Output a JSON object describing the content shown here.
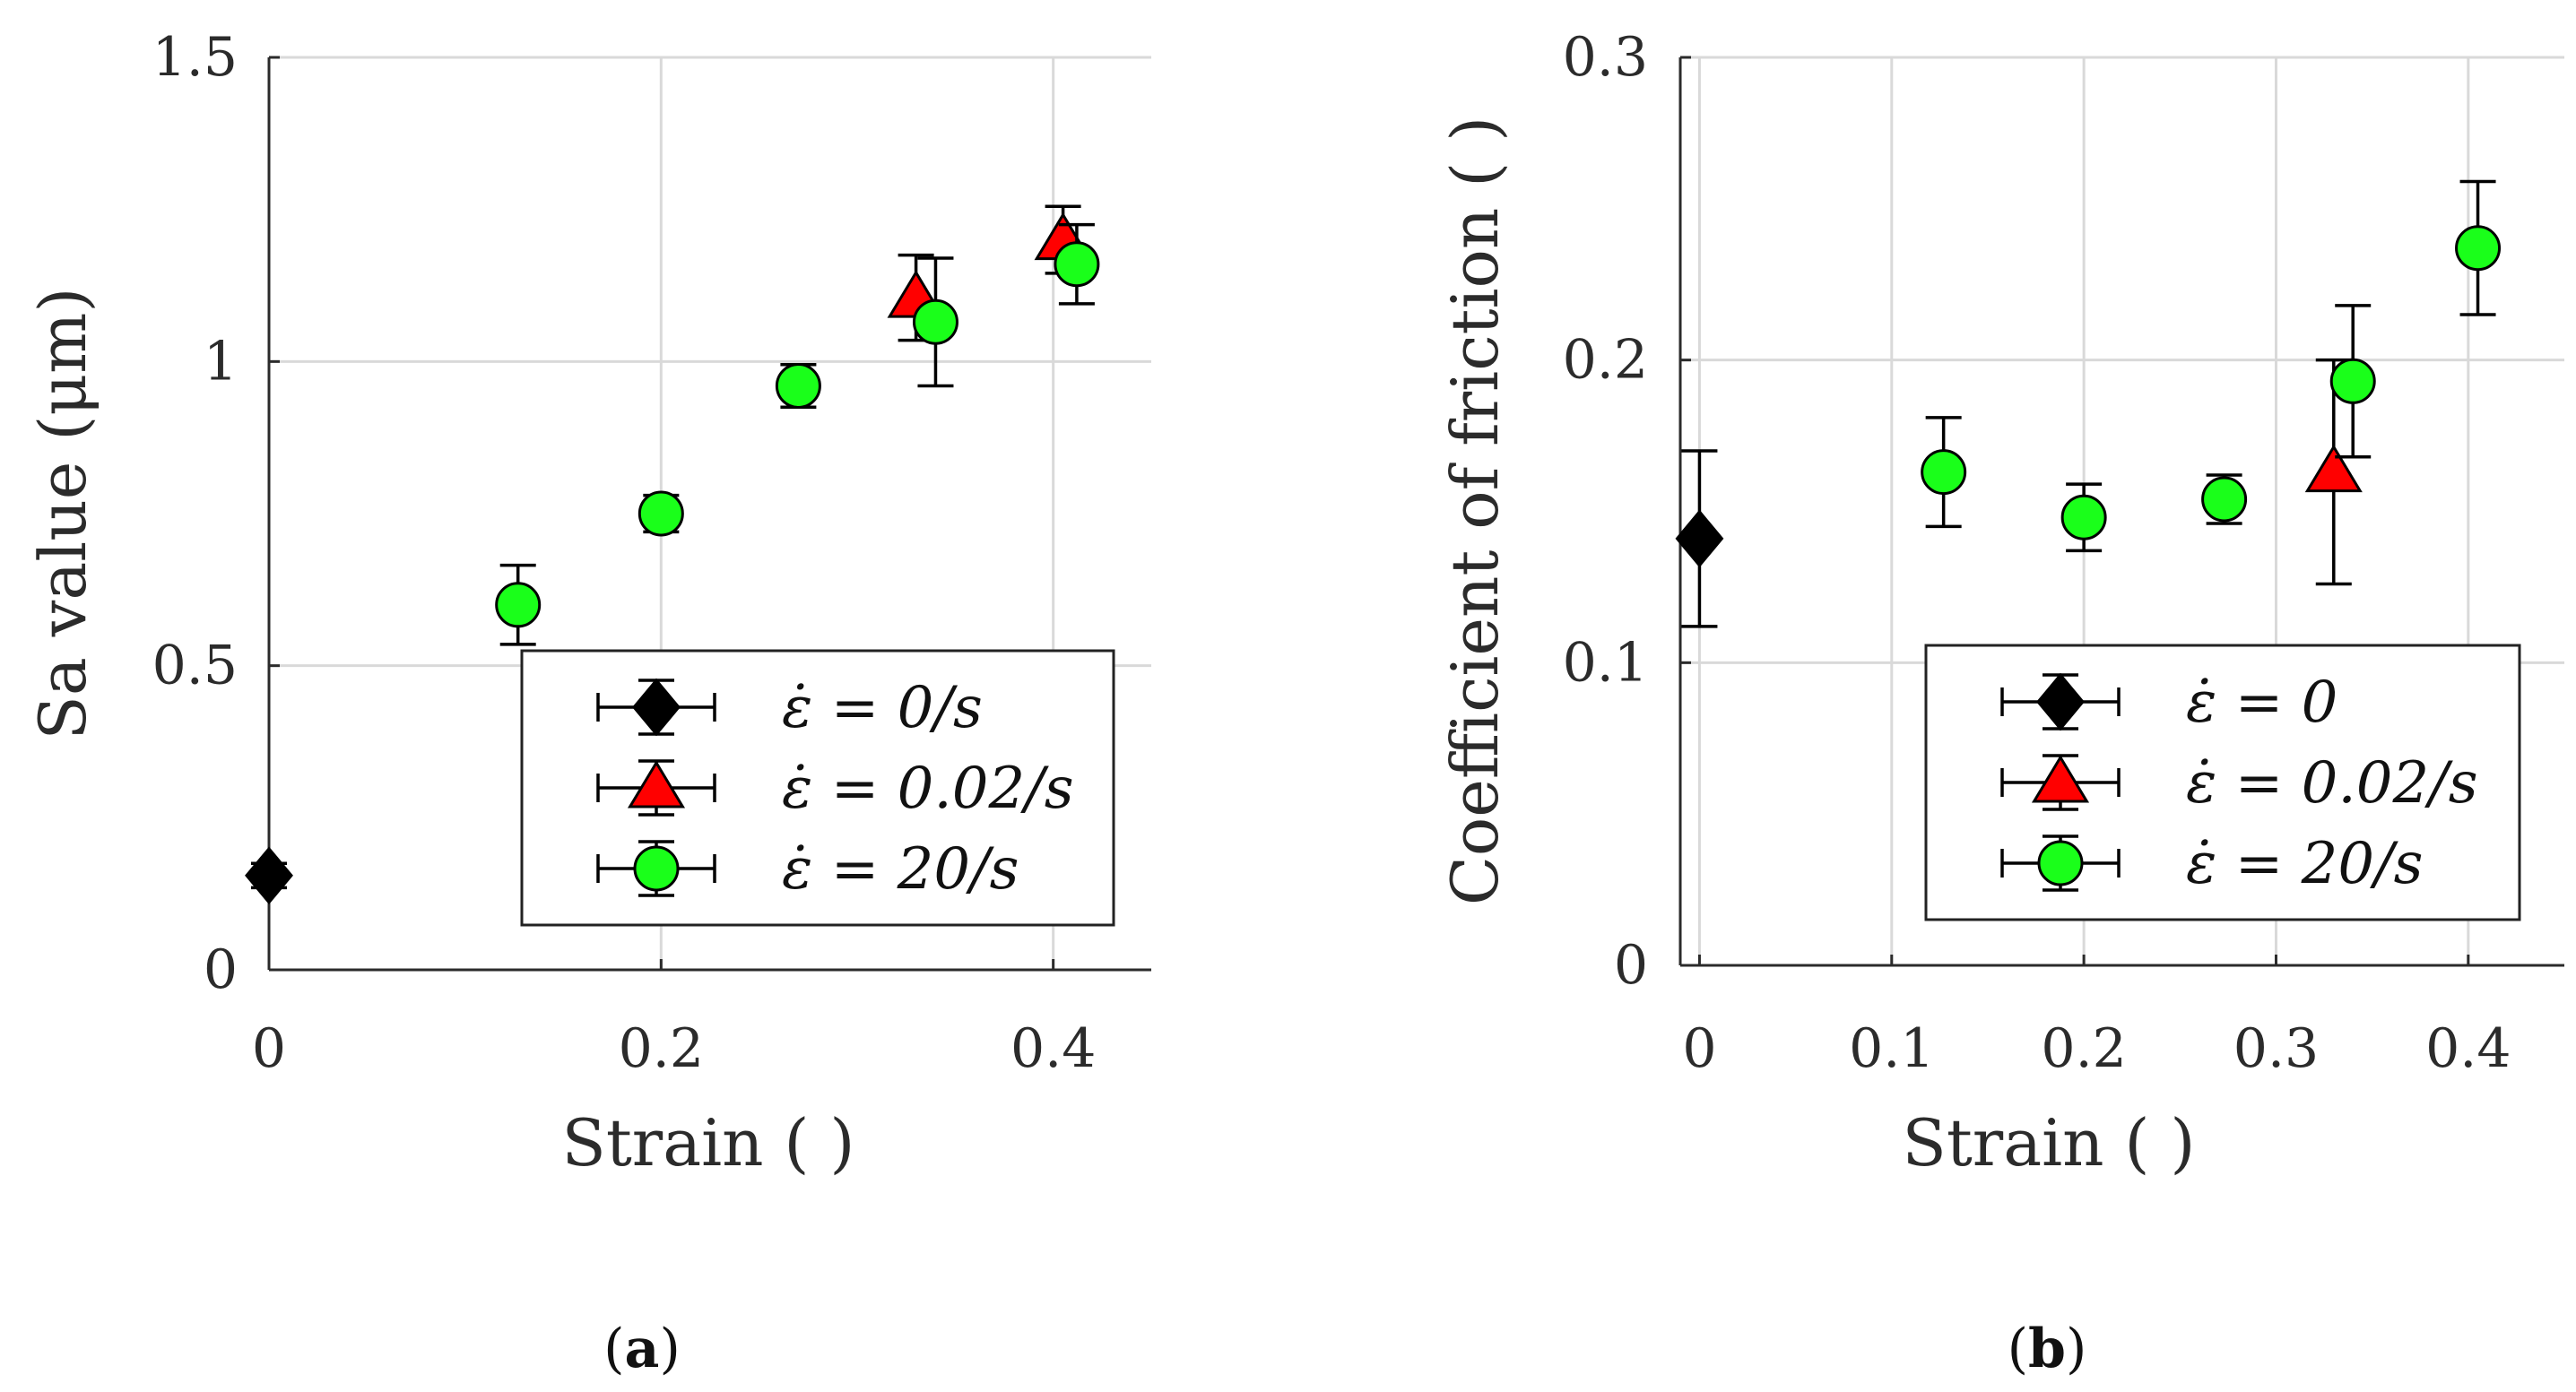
{
  "colors": {
    "black": "#000000",
    "red": "#ff0000",
    "green": "#1aff1a",
    "grid": "#d9d9d9",
    "axis": "#2b2b2b"
  },
  "chart_data": [
    {
      "type": "scatter",
      "panel_label": "a",
      "xlabel": "Strain ( )",
      "ylabel": "Sa value (μm)",
      "xlim": [
        0,
        0.45
      ],
      "ylim": [
        0,
        1.5
      ],
      "xticks": [
        0,
        0.2,
        0.4
      ],
      "xtick_labels": [
        "0",
        "0.2",
        "0.4"
      ],
      "yticks": [
        0,
        0.5,
        1,
        1.5
      ],
      "ytick_labels": [
        "0",
        "0.5",
        "1",
        "1.5"
      ],
      "grid": true,
      "legend_position": "bottom-right",
      "series": [
        {
          "name": "ε̇ = 0/s",
          "marker": "diamond",
          "color": "#000000",
          "points": [
            {
              "x": 0,
              "y": 0.155,
              "err": 0.02
            }
          ]
        },
        {
          "name": "ε̇ = 0.02/s",
          "marker": "triangle",
          "color": "#ff0000",
          "points": [
            {
              "x": 0.33,
              "y": 1.105,
              "err": 0.07
            },
            {
              "x": 0.405,
              "y": 1.2,
              "err": 0.055
            }
          ]
        },
        {
          "name": "ε̇ = 20/s",
          "marker": "circle",
          "color": "#1aff1a",
          "points": [
            {
              "x": 0.127,
              "y": 0.6,
              "err": 0.065
            },
            {
              "x": 0.2,
              "y": 0.75,
              "err": 0.03
            },
            {
              "x": 0.27,
              "y": 0.96,
              "err": 0.035
            },
            {
              "x": 0.34,
              "y": 1.065,
              "err": 0.105
            },
            {
              "x": 0.412,
              "y": 1.16,
              "err": 0.065
            }
          ]
        }
      ]
    },
    {
      "type": "scatter",
      "panel_label": "b",
      "xlabel": "Strain ( )",
      "ylabel": "Coefficient of friction ( )",
      "xlim": [
        -0.01,
        0.45
      ],
      "ylim": [
        0,
        0.3
      ],
      "xticks": [
        0,
        0.1,
        0.2,
        0.3,
        0.4
      ],
      "xtick_labels": [
        "0",
        "0.1",
        "0.2",
        "0.3",
        "0.4"
      ],
      "yticks": [
        0,
        0.1,
        0.2,
        0.3
      ],
      "ytick_labels": [
        "0",
        "0.1",
        "0.2",
        "0.3"
      ],
      "grid": true,
      "legend_position": "bottom-right",
      "series": [
        {
          "name": "ε̇ = 0",
          "marker": "diamond",
          "color": "#000000",
          "points": [
            {
              "x": 0,
              "y": 0.141,
              "err": 0.029
            }
          ]
        },
        {
          "name": "ε̇ = 0.02/s",
          "marker": "triangle",
          "color": "#ff0000",
          "points": [
            {
              "x": 0.33,
              "y": 0.163,
              "err": 0.037
            }
          ]
        },
        {
          "name": "ε̇ = 20/s",
          "marker": "circle",
          "color": "#1aff1a",
          "points": [
            {
              "x": 0.127,
              "y": 0.163,
              "err": 0.018
            },
            {
              "x": 0.2,
              "y": 0.148,
              "err": 0.011
            },
            {
              "x": 0.273,
              "y": 0.154,
              "err": 0.008
            },
            {
              "x": 0.34,
              "y": 0.193,
              "err": 0.025
            },
            {
              "x": 0.405,
              "y": 0.237,
              "err": 0.022
            }
          ]
        }
      ]
    }
  ]
}
